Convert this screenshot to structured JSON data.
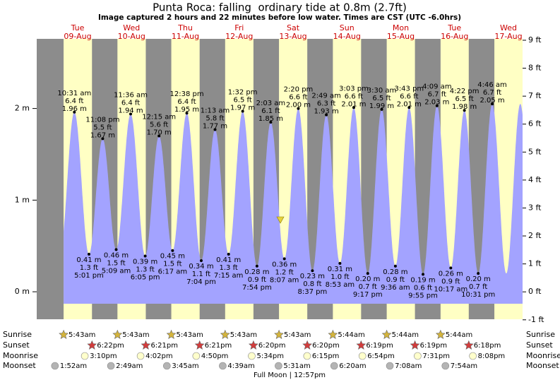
{
  "chart_data": {
    "type": "tide",
    "title": "Punta Roca: falling  ordinary tide at 0.8m (2.7ft)",
    "subtitle": "Image captured 2 hours and 22 minutes before low water. Times are CST (UTC -6.0hrs)",
    "days": [
      {
        "weekday": "Tue",
        "date": "09-Aug"
      },
      {
        "weekday": "Wed",
        "date": "10-Aug"
      },
      {
        "weekday": "Thu",
        "date": "11-Aug"
      },
      {
        "weekday": "Fri",
        "date": "12-Aug"
      },
      {
        "weekday": "Sat",
        "date": "13-Aug"
      },
      {
        "weekday": "Sun",
        "date": "14-Aug"
      },
      {
        "weekday": "Mon",
        "date": "15-Aug"
      },
      {
        "weekday": "Tue",
        "date": "16-Aug"
      },
      {
        "weekday": "Wed",
        "date": "17-Aug"
      }
    ],
    "tides": {
      "times": [
        "10:31 am",
        "5:01 pm",
        "11:08 pm",
        "5:09 am",
        "11:36 am",
        "6:05 pm",
        "12:15 am",
        "6:17 am",
        "12:38 pm",
        "7:04 pm",
        "1:13 am",
        "7:15 am",
        "1:32 pm",
        "7:54 pm",
        "2:03 am",
        "8:07 am",
        "2:20 pm",
        "8:37 pm",
        "2:49 am",
        "8:53 am",
        "3:03 pm",
        "9:17 pm",
        "3:30 am",
        "9:36 am",
        "3:43 pm",
        "9:55 pm",
        "4:09 am",
        "10:17 am",
        "4:22 pm",
        "10:31 pm",
        "4:46 am"
      ],
      "values": [
        1.96,
        0.41,
        1.67,
        0.46,
        1.94,
        0.39,
        1.7,
        0.45,
        1.95,
        0.34,
        1.77,
        0.41,
        1.97,
        0.28,
        1.85,
        0.36,
        2.0,
        0.23,
        1.93,
        0.31,
        2.01,
        0.2,
        1.99,
        0.28,
        2.01,
        0.19,
        2.03,
        0.26,
        1.98,
        0.2,
        2.05
      ],
      "value_labels": [
        "1.96 m",
        "0.41 m",
        "1.67 m",
        "0.46 m",
        "1.94 m",
        "0.39 m",
        "1.70 m",
        "0.45 m",
        "1.95 m",
        "0.34 m",
        "1.77 m",
        "0.41 m",
        "1.97 m",
        "0.28 m",
        "1.85 m",
        "0.36 m",
        "2.00 m",
        "0.23 m",
        "1.93 m",
        "0.31 m",
        "2.01 m",
        "0.20 m",
        "1.99 m",
        "0.28 m",
        "2.01 m",
        "0.19 m",
        "2.03 m",
        "0.26 m",
        "1.98 m",
        "0.20 m",
        "2.05 m"
      ],
      "ft_labels": [
        "6.4 ft",
        "1.3 ft",
        "5.5 ft",
        "1.5 ft",
        "6.4 ft",
        "1.3 ft",
        "5.6 ft",
        "1.5 ft",
        "6.4 ft",
        "1.1 ft",
        "5.8 ft",
        "1.3 ft",
        "6.5 ft",
        "0.9 ft",
        "6.1 ft",
        "1.2 ft",
        "6.6 ft",
        "0.8 ft",
        "6.3 ft",
        "1.0 ft",
        "6.6 ft",
        "0.7 ft",
        "6.5 ft",
        "0.9 ft",
        "6.6 ft",
        "0.6 ft",
        "6.7 ft",
        "0.9 ft",
        "6.5 ft",
        "0.7 ft",
        "6.7 ft"
      ]
    },
    "ylim": [
      -0.3,
      2.76
    ],
    "yticks": [
      {
        "value": 0,
        "label": "0 m"
      },
      {
        "value": 1,
        "label": "1 m"
      },
      {
        "value": 2,
        "label": "2 m"
      }
    ],
    "y2lim": [
      -0.98,
      9.05
    ],
    "y2ticks": [
      {
        "value": -1,
        "label": "-1 ft"
      },
      {
        "value": 0,
        "label": "0 ft"
      },
      {
        "value": 1,
        "label": "1 ft"
      },
      {
        "value": 2,
        "label": "2 ft"
      },
      {
        "value": 3,
        "label": "3 ft"
      },
      {
        "value": 4,
        "label": "4 ft"
      },
      {
        "value": 5,
        "label": "5 ft"
      },
      {
        "value": 6,
        "label": "6 ft"
      },
      {
        "value": 7,
        "label": "7 ft"
      },
      {
        "value": 8,
        "label": "8 ft"
      },
      {
        "value": 9,
        "label": "9 ft"
      }
    ],
    "row_labels": [
      "Sunrise",
      "Sunset",
      "Moonrise",
      "Moonset"
    ],
    "sunrise": [
      "5:43am",
      "5:43am",
      "5:43am",
      "5:43am",
      "5:43am",
      "5:44am",
      "5:44am",
      "5:44am"
    ],
    "sunset": [
      "6:22pm",
      "6:21pm",
      "6:21pm",
      "6:20pm",
      "6:20pm",
      "6:19pm",
      "6:19pm",
      "6:18pm"
    ],
    "moonrise": [
      "3:10pm",
      "4:02pm",
      "4:50pm",
      "5:34pm",
      "6:15pm",
      "6:54pm",
      "7:31pm",
      "8:08pm"
    ],
    "moonset": [
      "1:52am",
      "2:49am",
      "3:45am",
      "4:39am",
      "5:31am",
      "6:20am",
      "7:08am",
      "7:54am"
    ],
    "full_moon": "Full Moon | 12:57pm",
    "colors": {
      "water": "#a3a3ff",
      "day": "#ffffc4",
      "night": "#8c8c8c",
      "sunrise": "#d4b43c",
      "sunset": "#d23c3c",
      "moonrise": "#ffffcc",
      "moonset": "#b4b4b4"
    }
  }
}
